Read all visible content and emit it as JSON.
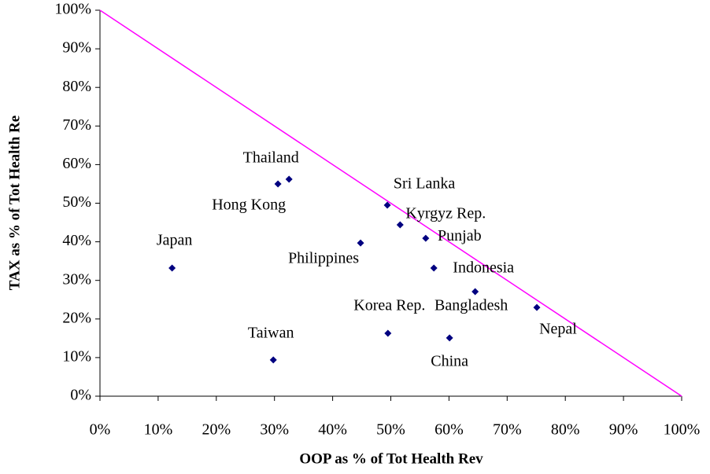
{
  "chart_data": {
    "type": "scatter",
    "xlabel": "OOP as % of Tot Health Rev",
    "ylabel": "TAX as % of Tot Health Re",
    "series": [
      {
        "color": "#000080",
        "labels": [
          "Japan",
          "Taiwan",
          "Hong Kong",
          "Thailand",
          "Philippines",
          "Sri Lanka",
          "Korea Rep.",
          "Kyrgyz Rep.",
          "Punjab",
          "Indonesia",
          "China",
          "Bangladesh",
          "Nepal"
        ],
        "x": [
          12.4,
          29.8,
          30.6,
          32.5,
          44.8,
          49.4,
          49.5,
          51.6,
          56,
          57.4,
          60.1,
          64.5,
          75.1
        ],
        "values": [
          33.2,
          9.4,
          55,
          56.2,
          39.7,
          49.5,
          16.3,
          44.4,
          40.9,
          33.2,
          15.1,
          27.1,
          23
        ]
      }
    ],
    "reference_line": {
      "color": "#ff00ff",
      "x": [
        0,
        100
      ],
      "y": [
        100,
        0
      ]
    },
    "xlim": [
      0,
      100
    ],
    "ylim": [
      0,
      100
    ],
    "xticks": [
      {
        "value": 0,
        "label": "0%"
      },
      {
        "value": 10,
        "label": "10%"
      },
      {
        "value": 20,
        "label": "20%"
      },
      {
        "value": 30,
        "label": "30%"
      },
      {
        "value": 40,
        "label": "40%"
      },
      {
        "value": 50,
        "label": "50%"
      },
      {
        "value": 60,
        "label": "60%"
      },
      {
        "value": 70,
        "label": "70%"
      },
      {
        "value": 80,
        "label": "80%"
      },
      {
        "value": 90,
        "label": "90%"
      },
      {
        "value": 100,
        "label": "100%"
      }
    ],
    "yticks": [
      {
        "value": 0,
        "label": "0%"
      },
      {
        "value": 10,
        "label": "10%"
      },
      {
        "value": 20,
        "label": "20%"
      },
      {
        "value": 30,
        "label": "30%"
      },
      {
        "value": 40,
        "label": "40%"
      },
      {
        "value": 50,
        "label": "50%"
      },
      {
        "value": 60,
        "label": "60%"
      },
      {
        "value": 70,
        "label": "70%"
      },
      {
        "value": 80,
        "label": "80%"
      },
      {
        "value": 90,
        "label": "90%"
      },
      {
        "value": 100,
        "label": "100%"
      }
    ]
  }
}
